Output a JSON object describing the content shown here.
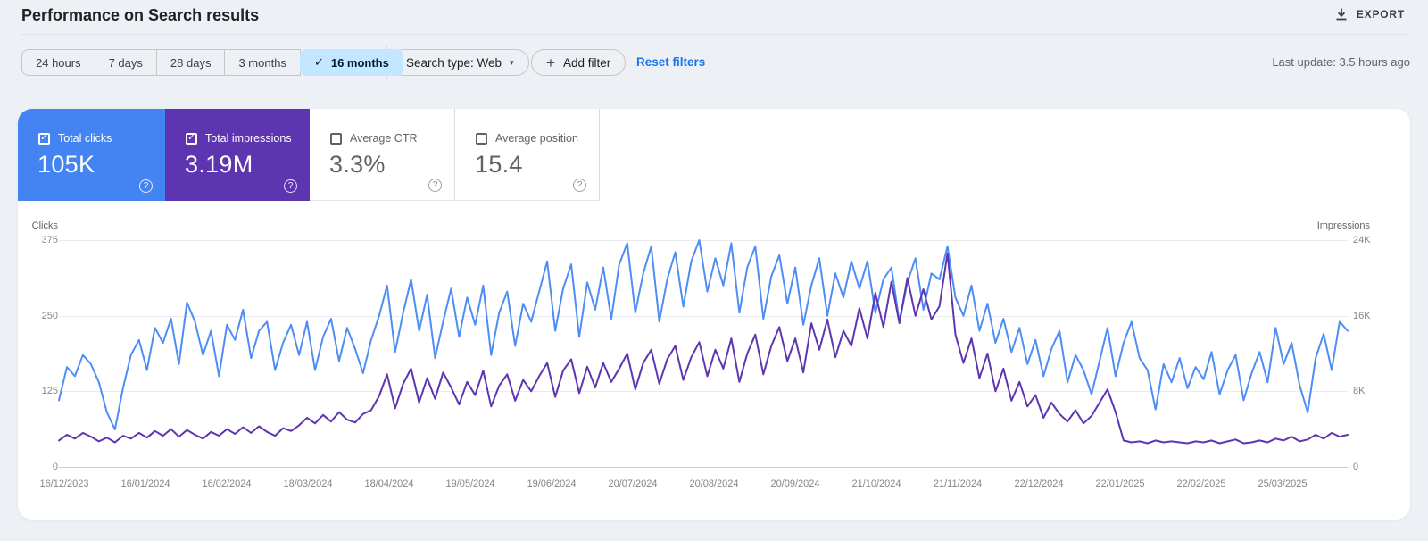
{
  "header": {
    "title": "Performance on Search results",
    "export_label": "EXPORT"
  },
  "filters": {
    "date_ranges": [
      {
        "label": "24 hours",
        "selected": false
      },
      {
        "label": "7 days",
        "selected": false
      },
      {
        "label": "28 days",
        "selected": false
      },
      {
        "label": "3 months",
        "selected": false
      },
      {
        "label": "16 months",
        "selected": true
      }
    ],
    "search_type_label": "Search type: Web",
    "add_filter_label": "Add filter",
    "reset_filters_label": "Reset filters",
    "last_update": "Last update: 3.5 hours ago"
  },
  "icons": {
    "check": "✓",
    "plus": "+",
    "caret": "▾",
    "help": "?"
  },
  "metrics": [
    {
      "label": "Total clicks",
      "value": "105K",
      "checked": true,
      "color": "#4483f2"
    },
    {
      "label": "Total impressions",
      "value": "3.19M",
      "checked": true,
      "color": "#5e35b1"
    },
    {
      "label": "Average CTR",
      "value": "3.3%",
      "checked": false
    },
    {
      "label": "Average position",
      "value": "15.4",
      "checked": false
    }
  ],
  "chart_data": {
    "type": "line",
    "grid": true,
    "left_axis": {
      "label": "Clicks",
      "ticks": [
        "375",
        "250",
        "125",
        "0"
      ],
      "max": 375,
      "min": 0
    },
    "right_axis": {
      "label": "Impressions",
      "ticks": [
        "24K",
        "16K",
        "8K",
        "0"
      ],
      "max": 24000,
      "min": 0
    },
    "x_labels": [
      "16/12/2023",
      "16/01/2024",
      "16/02/2024",
      "18/03/2024",
      "18/04/2024",
      "19/05/2024",
      "19/06/2024",
      "20/07/2024",
      "20/08/2024",
      "20/09/2024",
      "21/10/2024",
      "21/11/2024",
      "22/12/2024",
      "22/01/2025",
      "22/02/2025",
      "25/03/2025"
    ],
    "series": [
      {
        "name": "Clicks",
        "axis": "left",
        "color": "#4e8df5",
        "values": [
          110,
          165,
          150,
          185,
          170,
          140,
          90,
          62,
          130,
          185,
          210,
          160,
          230,
          205,
          245,
          170,
          272,
          240,
          185,
          225,
          150,
          235,
          210,
          260,
          180,
          225,
          240,
          160,
          205,
          235,
          185,
          240,
          160,
          215,
          245,
          175,
          230,
          195,
          155,
          210,
          250,
          300,
          190,
          255,
          310,
          225,
          285,
          180,
          240,
          295,
          215,
          280,
          235,
          300,
          185,
          255,
          290,
          200,
          270,
          240,
          290,
          340,
          225,
          295,
          335,
          215,
          305,
          260,
          330,
          245,
          335,
          370,
          255,
          320,
          365,
          240,
          310,
          355,
          265,
          340,
          375,
          290,
          345,
          300,
          370,
          255,
          330,
          365,
          245,
          315,
          350,
          270,
          330,
          235,
          300,
          345,
          250,
          320,
          280,
          340,
          295,
          340,
          255,
          310,
          330,
          240,
          305,
          345,
          260,
          320,
          310,
          365,
          280,
          250,
          300,
          225,
          270,
          205,
          245,
          190,
          230,
          170,
          210,
          150,
          195,
          225,
          140,
          185,
          160,
          120,
          175,
          230,
          150,
          205,
          240,
          180,
          160,
          95,
          170,
          140,
          180,
          130,
          165,
          145,
          190,
          120,
          160,
          185,
          110,
          155,
          190,
          140,
          230,
          170,
          205,
          135,
          90,
          180,
          220,
          160,
          240,
          225
        ]
      },
      {
        "name": "Impressions",
        "axis": "right",
        "color": "#5e35b1",
        "values": [
          2800,
          3400,
          3000,
          3600,
          3200,
          2700,
          3100,
          2600,
          3300,
          3000,
          3600,
          3100,
          3800,
          3300,
          4000,
          3200,
          3900,
          3400,
          3000,
          3700,
          3300,
          4000,
          3500,
          4200,
          3600,
          4300,
          3700,
          3300,
          4100,
          3800,
          4400,
          5200,
          4600,
          5500,
          4800,
          5800,
          5000,
          4700,
          5600,
          6000,
          7500,
          9800,
          6200,
          8800,
          10400,
          6800,
          9400,
          7200,
          10000,
          8400,
          6600,
          9000,
          7600,
          10200,
          6400,
          8600,
          9800,
          7000,
          9200,
          8000,
          9600,
          11000,
          7400,
          10200,
          11400,
          7800,
          10600,
          8400,
          11000,
          9000,
          10400,
          12000,
          8200,
          11000,
          12400,
          8800,
          11400,
          12800,
          9200,
          11600,
          13200,
          9600,
          12400,
          10400,
          13600,
          9000,
          12000,
          14000,
          9800,
          12800,
          14800,
          11200,
          13600,
          10000,
          15200,
          12400,
          15600,
          11600,
          14400,
          12800,
          16800,
          13600,
          18400,
          14800,
          19600,
          15200,
          20000,
          16000,
          18800,
          15600,
          17000,
          22600,
          14000,
          11000,
          13600,
          9400,
          12000,
          8000,
          10400,
          7000,
          9000,
          6400,
          7600,
          5200,
          6800,
          5600,
          4800,
          6000,
          4600,
          5400,
          6800,
          8200,
          5800,
          2800,
          2600,
          2700,
          2500,
          2800,
          2600,
          2700,
          2600,
          2500,
          2700,
          2600,
          2800,
          2500,
          2700,
          2900,
          2500,
          2600,
          2800,
          2600,
          3000,
          2800,
          3200,
          2700,
          2900,
          3400,
          3000,
          3600,
          3200,
          3400
        ]
      }
    ]
  }
}
